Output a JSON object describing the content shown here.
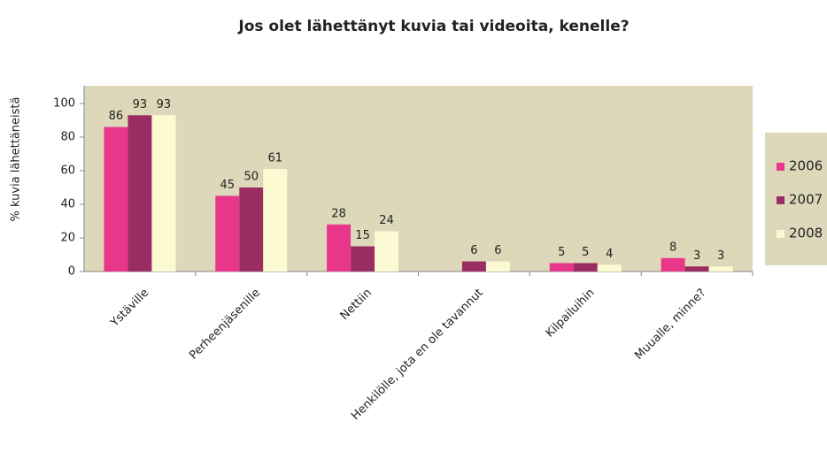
{
  "chart_data": {
    "type": "bar",
    "title": "Jos olet lähettänyt kuvia tai videoita, kenelle?",
    "y_label": "% kuvia lähettäneistä",
    "categories": [
      "Ystäville",
      "Perheenjäsenille",
      "Nettiin",
      "Henkilölle, jota en ole tavannut",
      "Kilpailuihin",
      "Muualle, minne?"
    ],
    "series": [
      {
        "name": "2006",
        "color": "#e8378b",
        "values": [
          86,
          45,
          28,
          null,
          5,
          8
        ]
      },
      {
        "name": "2007",
        "color": "#9a2d63",
        "values": [
          93,
          50,
          15,
          6,
          5,
          3
        ]
      },
      {
        "name": "2008",
        "color": "#fcfad2",
        "values": [
          93,
          61,
          24,
          6,
          4,
          3
        ]
      }
    ],
    "ylim": [
      0,
      100
    ],
    "yticks": [
      0,
      20,
      40,
      60,
      80,
      100
    ],
    "legend": "right"
  }
}
